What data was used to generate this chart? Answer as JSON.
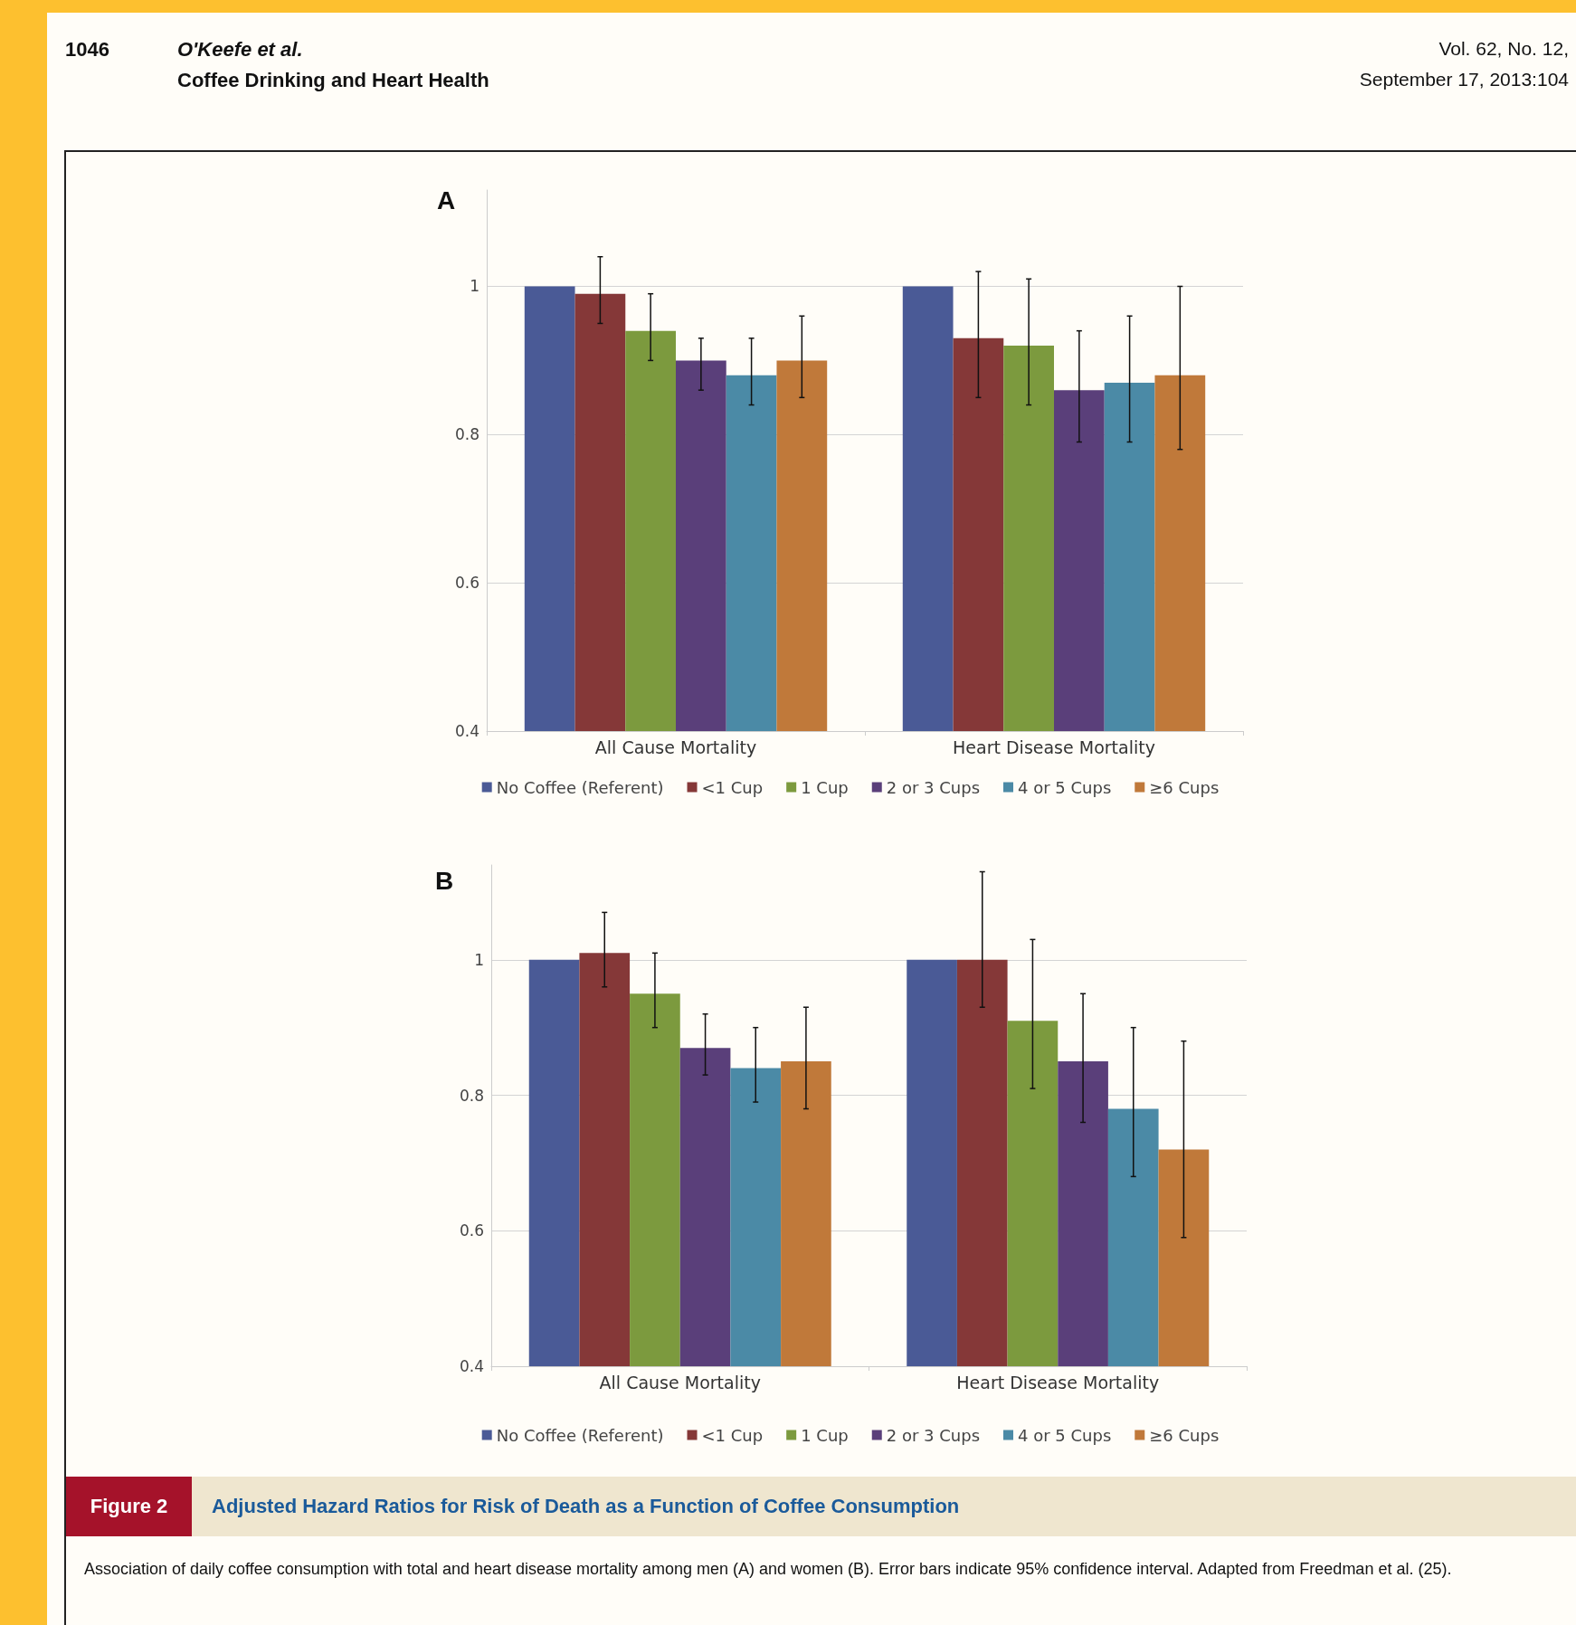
{
  "chart_data": [
    {
      "type": "bar",
      "title": "A",
      "categories": [
        "All Cause Mortality",
        "Heart Disease Mortality"
      ],
      "ylim": [
        0.4,
        1.13
      ],
      "yticks": [
        0.4,
        0.6,
        0.8,
        1
      ],
      "grid": "y",
      "legend": "bottom",
      "annotations": [
        "1046",
        "O'Keefe et al.",
        "Coffee Drinking and Heart Health",
        "Vol. 62, No. 12,",
        "September 17, 2013:104"
      ],
      "series": [
        {
          "name": "No Coffee (Referent)",
          "color": "#4a5a96",
          "values": [
            1.0,
            1.0
          ]
        },
        {
          "name": "<1 Cup",
          "color": "#853838",
          "values": [
            0.99,
            0.93
          ],
          "errors": [
            [
              0.95,
              1.04
            ],
            [
              0.85,
              1.02
            ]
          ]
        },
        {
          "name": "1 Cup",
          "color": "#7c9a3e",
          "values": [
            0.94,
            0.92
          ],
          "errors": [
            [
              0.9,
              0.99
            ],
            [
              0.84,
              1.01
            ]
          ]
        },
        {
          "name": "2 or 3 Cups",
          "color": "#5a3f7a",
          "values": [
            0.9,
            0.86
          ],
          "errors": [
            [
              0.86,
              0.93
            ],
            [
              0.79,
              0.94
            ]
          ]
        },
        {
          "name": "4 or 5 Cups",
          "color": "#4b8aa6",
          "values": [
            0.88,
            0.87
          ],
          "errors": [
            [
              0.84,
              0.93
            ],
            [
              0.79,
              0.96
            ]
          ]
        },
        {
          "name": "≥6 Cups",
          "color": "#c0793a",
          "values": [
            0.9,
            0.88
          ],
          "errors": [
            [
              0.85,
              0.96
            ],
            [
              0.78,
              1.0
            ]
          ]
        }
      ]
    },
    {
      "type": "bar",
      "title": "B",
      "categories": [
        "All Cause Mortality",
        "Heart Disease Mortality"
      ],
      "ylim": [
        0.4,
        1.14
      ],
      "yticks": [
        0.4,
        0.6,
        0.8,
        1
      ],
      "grid": "y",
      "legend": "bottom",
      "annotations": [
        "Figure 2",
        "Adjusted Hazard Ratios for Risk of Death as a Function of Coffee Consumption",
        "Association of daily coffee consumption with total and heart disease mortality among men (A) and women (B). Error bars indicate 95% confidence interval. Adapted from Freedman et al. (25)."
      ],
      "series": [
        {
          "name": "No Coffee (Referent)",
          "color": "#4a5a96",
          "values": [
            1.0,
            1.0
          ]
        },
        {
          "name": "<1 Cup",
          "color": "#853838",
          "values": [
            1.01,
            1.0
          ],
          "errors": [
            [
              0.96,
              1.07
            ],
            [
              0.93,
              1.13
            ]
          ]
        },
        {
          "name": "1 Cup",
          "color": "#7c9a3e",
          "values": [
            0.95,
            0.91
          ],
          "errors": [
            [
              0.9,
              1.01
            ],
            [
              0.81,
              1.03
            ]
          ]
        },
        {
          "name": "2 or 3 Cups",
          "color": "#5a3f7a",
          "values": [
            0.87,
            0.85
          ],
          "errors": [
            [
              0.83,
              0.92
            ],
            [
              0.76,
              0.95
            ]
          ]
        },
        {
          "name": "4 or 5 Cups",
          "color": "#4b8aa6",
          "values": [
            0.84,
            0.78
          ],
          "errors": [
            [
              0.79,
              0.9
            ],
            [
              0.68,
              0.9
            ]
          ]
        },
        {
          "name": "≥6 Cups",
          "color": "#c0793a",
          "values": [
            0.85,
            0.72
          ],
          "errors": [
            [
              0.78,
              0.93
            ],
            [
              0.59,
              0.88
            ]
          ]
        }
      ]
    }
  ]
}
